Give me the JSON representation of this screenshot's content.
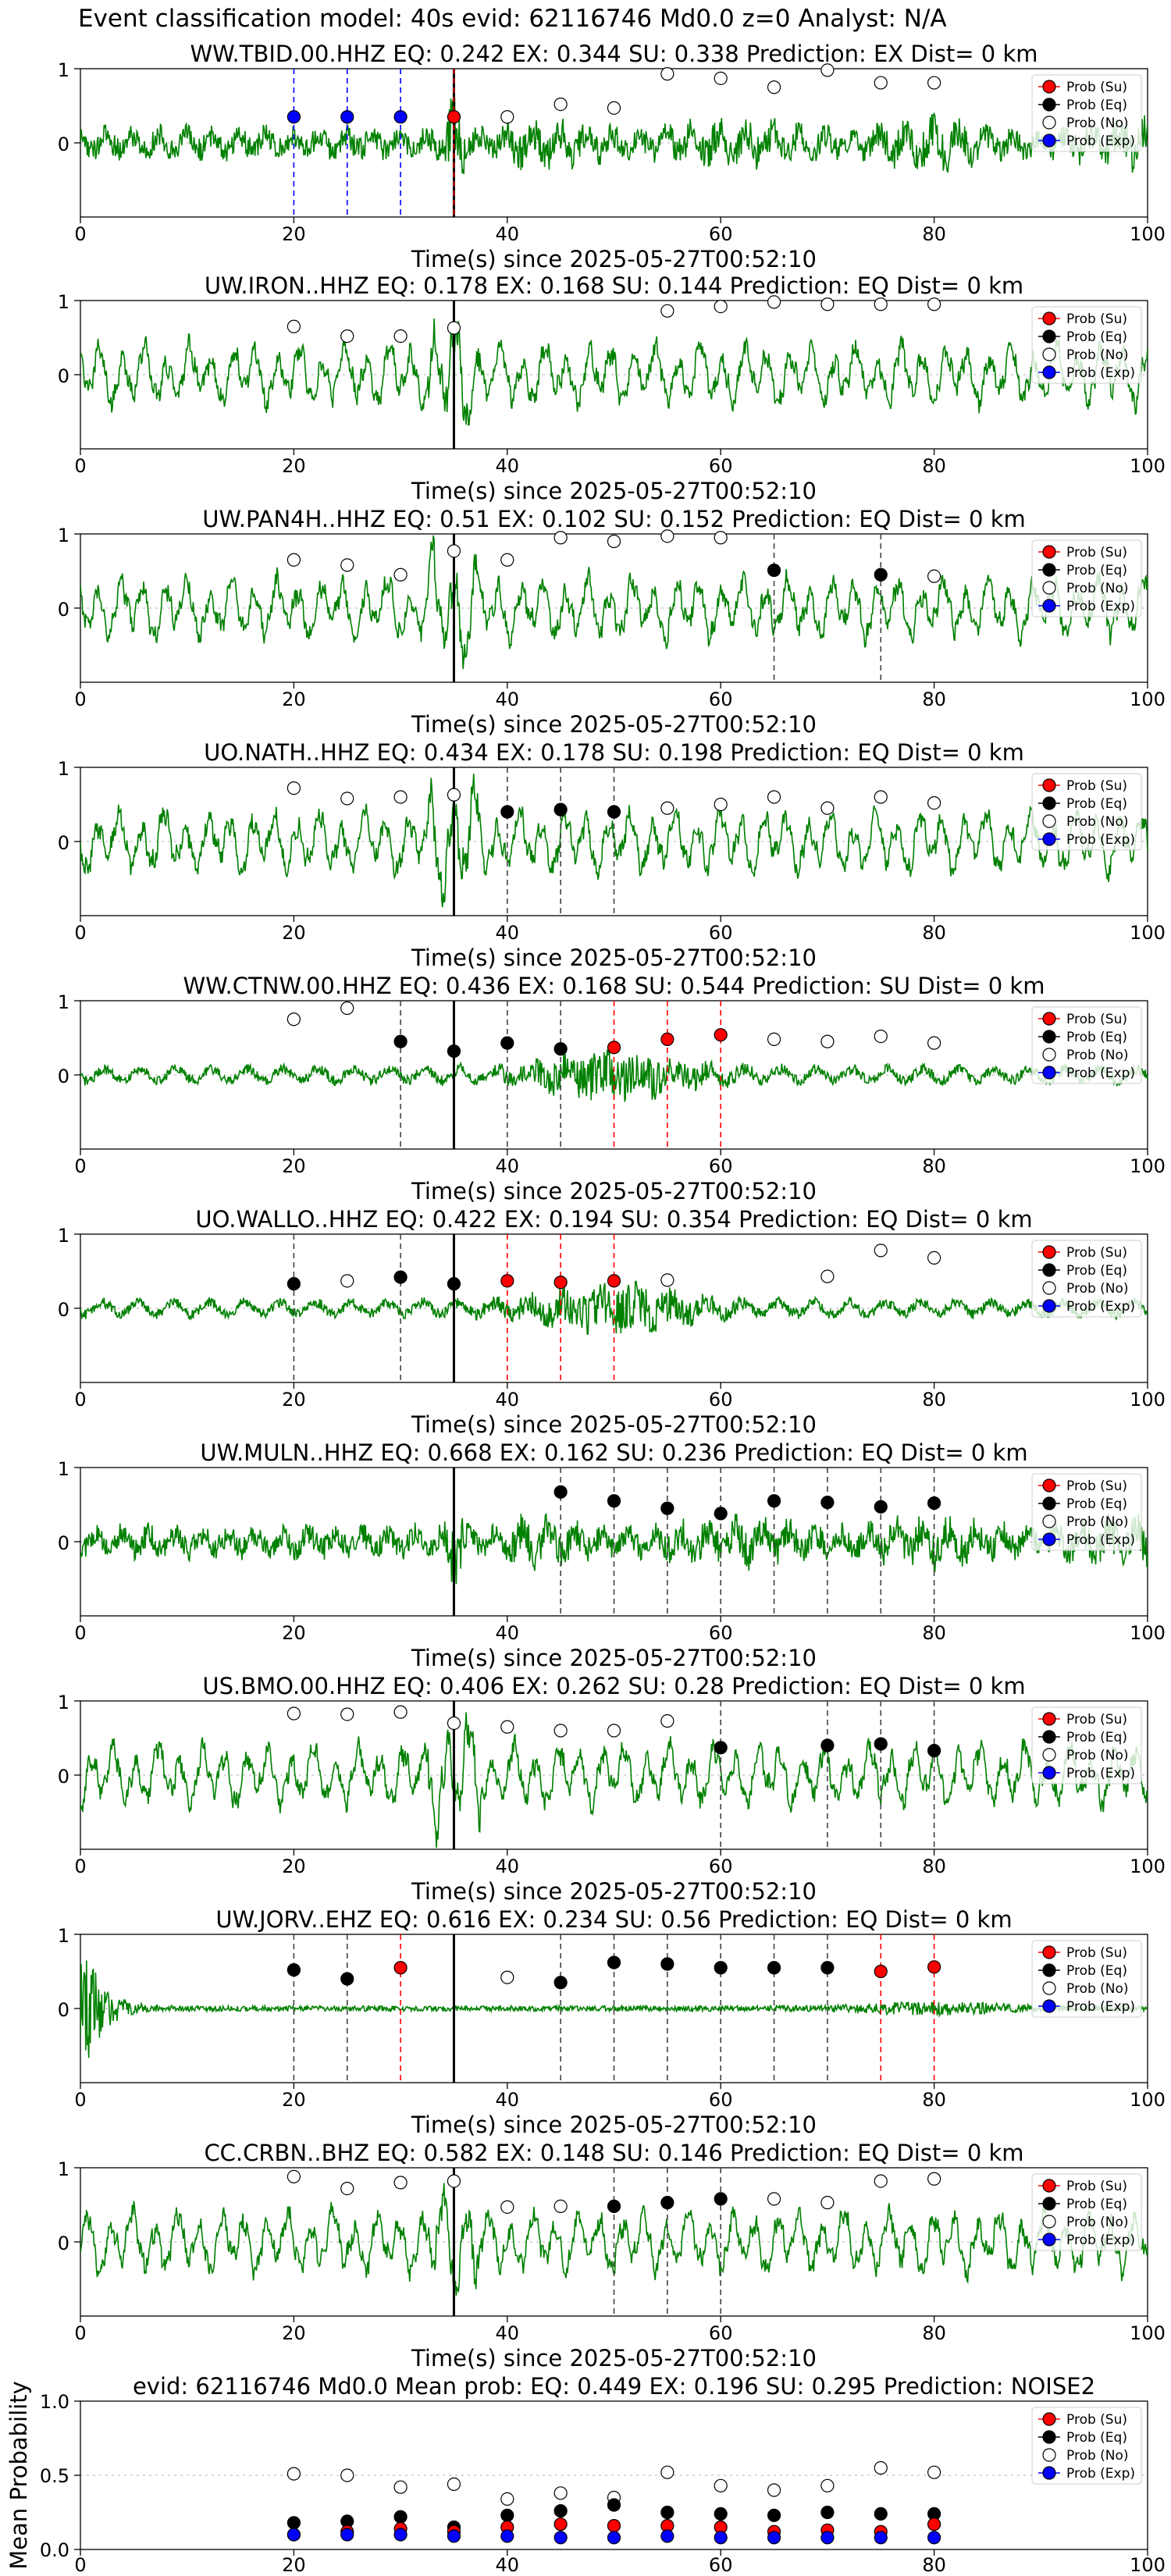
{
  "figure": {
    "supertitle": "Event classification model: 40s evid: 62116746 Md0.0 z=0 Analyst: N/A"
  },
  "colors": {
    "waveform": "#008000",
    "su": "#ff0000",
    "eq": "#000000",
    "no": "#ffffff",
    "exp": "#0000ff"
  },
  "legend": [
    "Prob (Su)",
    "Prob (Eq)",
    "Prob (No)",
    "Prob (Exp)"
  ],
  "xlabel": "Time(s) since 2025-05-27T00:52:10",
  "chart_data": [
    {
      "type": "line",
      "title": "WW.TBID.00.HHZ   EQ: 0.242  EX: 0.344  SU: 0.338   Prediction: EX    Dist= 0 km",
      "xlim": [
        0,
        100
      ],
      "ylim": [
        -1,
        1
      ],
      "xticks": [
        0,
        20,
        40,
        60,
        80,
        100
      ],
      "yticks": [
        0,
        1
      ],
      "origin_line": 35,
      "waveform_style": "noisy",
      "no": [
        [
          40,
          0.35
        ],
        [
          45,
          0.52
        ],
        [
          50,
          0.47
        ],
        [
          55,
          0.93
        ],
        [
          60,
          0.87
        ],
        [
          65,
          0.75
        ],
        [
          70,
          0.98
        ],
        [
          75,
          0.81
        ],
        [
          80,
          0.81
        ]
      ],
      "eq": [],
      "su": [
        [
          35,
          0.35
        ]
      ],
      "exp": [
        [
          20,
          0.35
        ],
        [
          25,
          0.35
        ],
        [
          30,
          0.35
        ]
      ],
      "picks": {
        "su": [
          35
        ],
        "eq": [],
        "exp": [
          20,
          25,
          30
        ]
      }
    },
    {
      "type": "line",
      "title": "UW.IRON..HHZ   EQ: 0.178  EX: 0.168  SU: 0.144   Prediction: EQ    Dist= 0 km",
      "xlim": [
        0,
        100
      ],
      "ylim": [
        -1,
        1
      ],
      "xticks": [
        0,
        20,
        40,
        60,
        80,
        100
      ],
      "yticks": [
        0,
        1
      ],
      "origin_line": 35,
      "waveform_style": "oscillating",
      "no": [
        [
          20,
          0.65
        ],
        [
          25,
          0.52
        ],
        [
          30,
          0.52
        ],
        [
          35,
          0.63
        ],
        [
          55,
          0.86
        ],
        [
          60,
          0.92
        ],
        [
          65,
          0.98
        ],
        [
          70,
          0.95
        ],
        [
          75,
          0.95
        ],
        [
          80,
          0.95
        ]
      ],
      "eq": [],
      "su": [],
      "exp": [],
      "picks": {
        "su": [],
        "eq": [],
        "exp": []
      }
    },
    {
      "type": "line",
      "title": "UW.PAN4H..HHZ   EQ: 0.51  EX: 0.102  SU: 0.152   Prediction: EQ    Dist= 0 km",
      "xlim": [
        0,
        100
      ],
      "ylim": [
        -1,
        1
      ],
      "xticks": [
        0,
        20,
        40,
        60,
        80,
        100
      ],
      "yticks": [
        0,
        1
      ],
      "origin_line": 35,
      "waveform_style": "oscillating",
      "no": [
        [
          20,
          0.65
        ],
        [
          25,
          0.58
        ],
        [
          30,
          0.45
        ],
        [
          35,
          0.77
        ],
        [
          40,
          0.65
        ],
        [
          45,
          0.95
        ],
        [
          50,
          0.9
        ],
        [
          55,
          0.97
        ],
        [
          60,
          0.95
        ],
        [
          80,
          0.43
        ]
      ],
      "eq": [
        [
          65,
          0.51
        ],
        [
          75,
          0.45
        ]
      ],
      "su": [],
      "exp": [],
      "picks": {
        "su": [],
        "eq": [
          65,
          75
        ],
        "exp": []
      }
    },
    {
      "type": "line",
      "title": "UO.NATH..HHZ   EQ: 0.434  EX: 0.178  SU: 0.198   Prediction: EQ    Dist= 0 km",
      "xlim": [
        0,
        100
      ],
      "ylim": [
        -1,
        1
      ],
      "xticks": [
        0,
        20,
        40,
        60,
        80,
        100
      ],
      "yticks": [
        0,
        1
      ],
      "origin_line": 35,
      "waveform_style": "oscillating",
      "no": [
        [
          20,
          0.72
        ],
        [
          25,
          0.58
        ],
        [
          30,
          0.6
        ],
        [
          35,
          0.63
        ],
        [
          55,
          0.45
        ],
        [
          60,
          0.5
        ],
        [
          65,
          0.6
        ],
        [
          70,
          0.45
        ],
        [
          75,
          0.6
        ],
        [
          80,
          0.52
        ]
      ],
      "eq": [
        [
          40,
          0.4
        ],
        [
          45,
          0.43
        ],
        [
          50,
          0.4
        ]
      ],
      "su": [],
      "exp": [],
      "picks": {
        "su": [],
        "eq": [
          40,
          45,
          50
        ],
        "exp": []
      }
    },
    {
      "type": "line",
      "title": "WW.CTNW.00.HHZ   EQ: 0.436  EX: 0.168  SU: 0.544   Prediction: SU    Dist= 0 km",
      "xlim": [
        0,
        100
      ],
      "ylim": [
        -1,
        1
      ],
      "xticks": [
        0,
        20,
        40,
        60,
        80,
        100
      ],
      "yticks": [
        0,
        1
      ],
      "origin_line": 35,
      "waveform_style": "burst",
      "no": [
        [
          20,
          0.75
        ],
        [
          25,
          0.9
        ],
        [
          65,
          0.48
        ],
        [
          70,
          0.45
        ],
        [
          75,
          0.52
        ],
        [
          80,
          0.43
        ]
      ],
      "eq": [
        [
          30,
          0.45
        ],
        [
          35,
          0.32
        ],
        [
          40,
          0.43
        ],
        [
          45,
          0.35
        ]
      ],
      "su": [
        [
          50,
          0.37
        ],
        [
          55,
          0.48
        ],
        [
          60,
          0.54
        ]
      ],
      "exp": [],
      "picks": {
        "su": [
          50,
          55,
          60
        ],
        "eq": [
          30,
          40,
          45
        ],
        "exp": []
      }
    },
    {
      "type": "line",
      "title": "UO.WALLO..HHZ   EQ: 0.422  EX: 0.194  SU: 0.354   Prediction: EQ    Dist= 0 km",
      "xlim": [
        0,
        100
      ],
      "ylim": [
        -1,
        1
      ],
      "xticks": [
        0,
        20,
        40,
        60,
        80,
        100
      ],
      "yticks": [
        0,
        1
      ],
      "origin_line": 35,
      "waveform_style": "burst",
      "no": [
        [
          25,
          0.37
        ],
        [
          55,
          0.38
        ],
        [
          70,
          0.43
        ],
        [
          75,
          0.78
        ],
        [
          80,
          0.68
        ]
      ],
      "eq": [
        [
          20,
          0.33
        ],
        [
          30,
          0.42
        ],
        [
          35,
          0.33
        ]
      ],
      "su": [
        [
          40,
          0.37
        ],
        [
          45,
          0.35
        ],
        [
          50,
          0.37
        ]
      ],
      "exp": [],
      "picks": {
        "su": [
          40,
          45,
          50
        ],
        "eq": [
          20,
          30
        ],
        "exp": []
      }
    },
    {
      "type": "line",
      "title": "UW.MULN..HHZ   EQ: 0.668  EX: 0.162  SU: 0.236   Prediction: EQ    Dist= 0 km",
      "xlim": [
        0,
        100
      ],
      "ylim": [
        -1,
        1
      ],
      "xticks": [
        0,
        20,
        40,
        60,
        80,
        100
      ],
      "yticks": [
        0,
        1
      ],
      "origin_line": 35,
      "waveform_style": "noisy",
      "no": [],
      "eq": [
        [
          45,
          0.67
        ],
        [
          50,
          0.55
        ],
        [
          55,
          0.45
        ],
        [
          60,
          0.38
        ],
        [
          65,
          0.55
        ],
        [
          70,
          0.53
        ],
        [
          75,
          0.47
        ],
        [
          80,
          0.52
        ]
      ],
      "su": [],
      "exp": [],
      "picks": {
        "su": [],
        "eq": [
          45,
          50,
          55,
          60,
          65,
          70,
          75,
          80
        ],
        "exp": []
      }
    },
    {
      "type": "line",
      "title": "US.BMO.00.HHZ   EQ: 0.406  EX: 0.262  SU: 0.28   Prediction: EQ    Dist= 0 km",
      "xlim": [
        0,
        100
      ],
      "ylim": [
        -1,
        1
      ],
      "xticks": [
        0,
        20,
        40,
        60,
        80,
        100
      ],
      "yticks": [
        0,
        1
      ],
      "origin_line": 35,
      "waveform_style": "oscillating",
      "no": [
        [
          20,
          0.83
        ],
        [
          25,
          0.82
        ],
        [
          30,
          0.85
        ],
        [
          35,
          0.7
        ],
        [
          40,
          0.65
        ],
        [
          45,
          0.6
        ],
        [
          50,
          0.6
        ],
        [
          55,
          0.73
        ]
      ],
      "eq": [
        [
          60,
          0.37
        ],
        [
          70,
          0.4
        ],
        [
          75,
          0.42
        ],
        [
          80,
          0.33
        ]
      ],
      "su": [],
      "exp": [],
      "picks": {
        "su": [],
        "eq": [
          60,
          70,
          75,
          80
        ],
        "exp": []
      }
    },
    {
      "type": "line",
      "title": "UW.JORV..EHZ   EQ: 0.616  EX: 0.234  SU: 0.56   Prediction: EQ    Dist= 0 km",
      "xlim": [
        0,
        100
      ],
      "ylim": [
        -1,
        1
      ],
      "xticks": [
        0,
        20,
        40,
        60,
        80,
        100
      ],
      "yticks": [
        0,
        1
      ],
      "origin_line": 35,
      "waveform_style": "quiet",
      "no": [
        [
          40,
          0.42
        ]
      ],
      "eq": [
        [
          20,
          0.52
        ],
        [
          25,
          0.4
        ],
        [
          45,
          0.35
        ],
        [
          50,
          0.62
        ],
        [
          55,
          0.6
        ],
        [
          60,
          0.55
        ],
        [
          65,
          0.55
        ],
        [
          70,
          0.55
        ]
      ],
      "su": [
        [
          30,
          0.55
        ],
        [
          75,
          0.5
        ],
        [
          80,
          0.56
        ]
      ],
      "exp": [],
      "picks": {
        "su": [
          30,
          75,
          80
        ],
        "eq": [
          20,
          25,
          45,
          50,
          55,
          60,
          65,
          70
        ],
        "exp": []
      }
    },
    {
      "type": "line",
      "title": "CC.CRBN..BHZ   EQ: 0.582  EX: 0.148  SU: 0.146   Prediction: EQ    Dist= 0 km",
      "xlim": [
        0,
        100
      ],
      "ylim": [
        -1,
        1
      ],
      "xticks": [
        0,
        20,
        40,
        60,
        80,
        100
      ],
      "yticks": [
        0,
        1
      ],
      "origin_line": 35,
      "waveform_style": "oscillating",
      "no": [
        [
          20,
          0.88
        ],
        [
          25,
          0.72
        ],
        [
          30,
          0.8
        ],
        [
          35,
          0.82
        ],
        [
          40,
          0.47
        ],
        [
          45,
          0.48
        ],
        [
          65,
          0.58
        ],
        [
          70,
          0.53
        ],
        [
          75,
          0.82
        ],
        [
          80,
          0.85
        ]
      ],
      "eq": [
        [
          50,
          0.48
        ],
        [
          55,
          0.53
        ],
        [
          60,
          0.58
        ]
      ],
      "su": [],
      "exp": [],
      "picks": {
        "su": [],
        "eq": [
          50,
          55,
          60
        ],
        "exp": []
      }
    },
    {
      "type": "scatter",
      "title": "evid: 62116746  Md0.0   Mean prob:   EQ: 0.449  EX: 0.196  SU: 0.295   Prediction: NOISE2",
      "ylabel": "Mean Probability",
      "xlim": [
        0,
        100
      ],
      "ylim": [
        0,
        1
      ],
      "xticks": [
        0,
        20,
        40,
        60,
        80,
        100
      ],
      "ytick_labels": [
        "0.0",
        "0.5",
        "1.0"
      ],
      "x": [
        20,
        25,
        30,
        35,
        40,
        45,
        50,
        55,
        60,
        65,
        70,
        75,
        80
      ],
      "series": [
        {
          "name": "Prob (Su)",
          "values": [
            0.1,
            0.12,
            0.14,
            0.12,
            0.15,
            0.17,
            0.16,
            0.16,
            0.15,
            0.12,
            0.13,
            0.12,
            0.17
          ]
        },
        {
          "name": "Prob (Eq)",
          "values": [
            0.18,
            0.19,
            0.22,
            0.15,
            0.23,
            0.26,
            0.3,
            0.25,
            0.24,
            0.23,
            0.25,
            0.24,
            0.24
          ]
        },
        {
          "name": "Prob (No)",
          "values": [
            0.51,
            0.5,
            0.42,
            0.44,
            0.34,
            0.38,
            0.35,
            0.52,
            0.43,
            0.4,
            0.43,
            0.55,
            0.52
          ]
        },
        {
          "name": "Prob (Exp)",
          "values": [
            0.1,
            0.1,
            0.1,
            0.09,
            0.09,
            0.08,
            0.08,
            0.09,
            0.08,
            0.08,
            0.08,
            0.08,
            0.08
          ]
        }
      ]
    }
  ]
}
